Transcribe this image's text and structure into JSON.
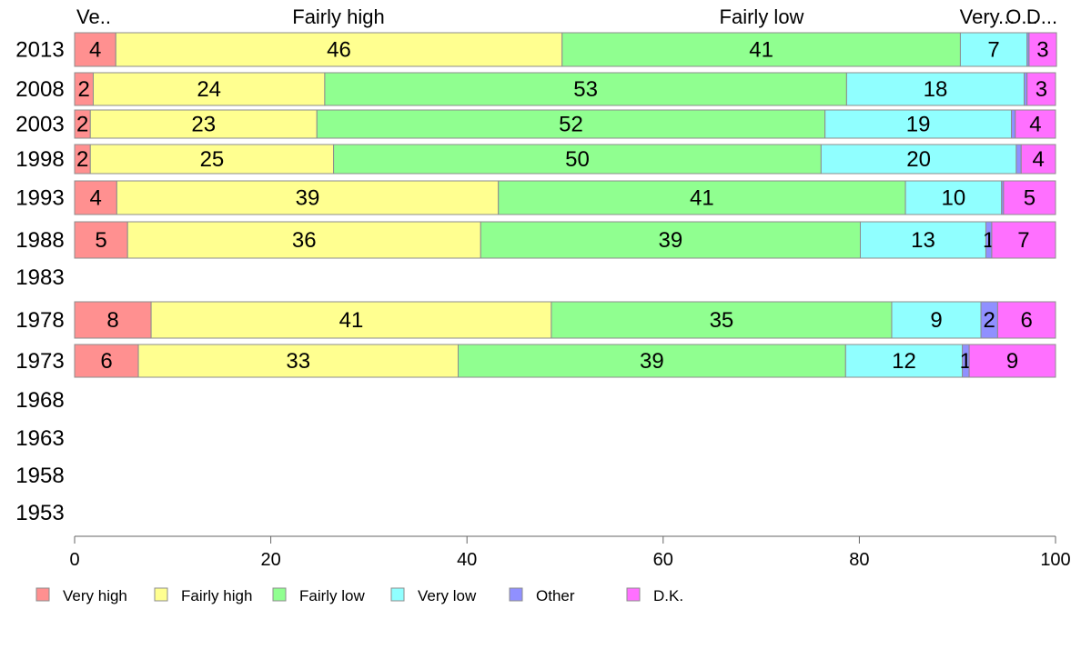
{
  "chart_data": {
    "type": "bar",
    "orientation": "horizontal",
    "stacked": true,
    "categories": [
      "2013",
      "2008",
      "2003",
      "1998",
      "1993",
      "1988",
      "1983",
      "1978",
      "1973",
      "1968",
      "1963",
      "1958",
      "1953"
    ],
    "series": [
      {
        "name": "Very high",
        "color": "#ff9090",
        "values": [
          4.2,
          1.9,
          1.6,
          1.6,
          4.3,
          5.4,
          null,
          7.8,
          6.5,
          null,
          null,
          null,
          null
        ],
        "labels": [
          "4",
          "2",
          "2",
          "2",
          "4",
          "5",
          "",
          "8",
          "6",
          "",
          "",
          "",
          ""
        ]
      },
      {
        "name": "Fairly high",
        "color": "#ffff90",
        "values": [
          45.5,
          23.6,
          23.1,
          24.8,
          38.9,
          36.0,
          null,
          40.8,
          32.6,
          null,
          null,
          null,
          null
        ],
        "labels": [
          "46",
          "24",
          "23",
          "25",
          "39",
          "36",
          "",
          "41",
          "33",
          "",
          "",
          "",
          ""
        ]
      },
      {
        "name": "Fairly low",
        "color": "#90ff90",
        "values": [
          40.6,
          53.2,
          51.8,
          49.7,
          41.5,
          38.7,
          null,
          34.7,
          39.5,
          null,
          null,
          null,
          null
        ],
        "labels": [
          "41",
          "53",
          "52",
          "50",
          "41",
          "39",
          "",
          "35",
          "39",
          "",
          "",
          "",
          ""
        ]
      },
      {
        "name": "Very low",
        "color": "#90ffff",
        "values": [
          6.8,
          18.1,
          19.0,
          19.9,
          9.8,
          12.8,
          null,
          9.1,
          11.9,
          null,
          null,
          null,
          null
        ],
        "labels": [
          "7",
          "18",
          "19",
          "20",
          "10",
          "13",
          "",
          "9",
          "12",
          "",
          "",
          "",
          ""
        ]
      },
      {
        "name": "Other",
        "color": "#9090ff",
        "values": [
          0.2,
          0.3,
          0.4,
          0.5,
          0.2,
          0.6,
          null,
          1.7,
          0.7,
          null,
          null,
          null,
          null
        ],
        "labels": [
          "",
          "",
          "",
          "",
          "",
          "1",
          "",
          "2",
          "1",
          "",
          "",
          "",
          ""
        ]
      },
      {
        "name": "D.K.",
        "color": "#ff70ff",
        "values": [
          2.8,
          2.9,
          4.1,
          3.5,
          5.3,
          6.5,
          null,
          5.9,
          8.8,
          null,
          null,
          null,
          null
        ],
        "labels": [
          "3",
          "3",
          "4",
          "4",
          "5",
          "7",
          "",
          "6",
          "9",
          "",
          "",
          "",
          ""
        ]
      }
    ],
    "header_labels": [
      "Ve..",
      "Fairly high",
      "Fairly low",
      "Very...",
      "O...",
      "D..."
    ],
    "xlim": [
      0,
      100
    ],
    "xticks": [
      0,
      20,
      40,
      60,
      80,
      100
    ],
    "title": "",
    "xlabel": "",
    "ylabel": "",
    "legend_position": "bottom",
    "grid": false
  }
}
